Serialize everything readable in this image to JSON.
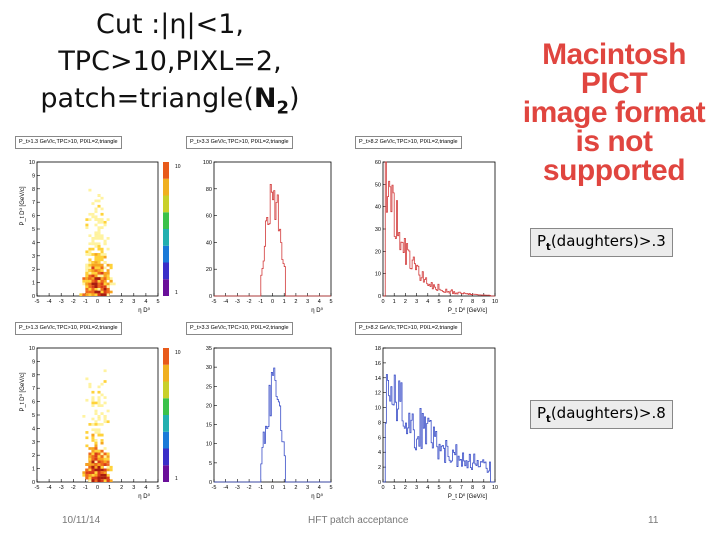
{
  "title": {
    "line1": "Cut :|η|<1,",
    "line2": "TPC>10,PIXL=2,",
    "line3_prefix": "patch=triangle(",
    "line3_bold": "N",
    "line3_sub": "2",
    "line3_suffix": ")"
  },
  "placeholder": {
    "line1": "Macintosh PICT",
    "line2": "image format",
    "line3": "is not supported"
  },
  "rows": [
    {
      "cut_prefix": "P",
      "cut_sub": "t",
      "cut_suffix": "(daughters)>.3",
      "hdr_left": "P_t>1.3 GeV/c,TPC>10, PIXL=2,triangle",
      "hdr_mid": "P_t>3.3 GeV/c,TPC>10, PIXL=2,triangle",
      "hdr_right": "P_t>8.2 GeV/c,TPC>10, PIXL=2,triangle"
    },
    {
      "cut_prefix": "P",
      "cut_sub": "t",
      "cut_suffix": "(daughters)>.8",
      "hdr_left": "P_t>1.3 GeV/c,TPC>10, PIXL=2,triangle",
      "hdr_mid": "P_t>3.3 GeV/c,TPC>10, PIXL=2,triangle",
      "hdr_right": "P_t>8.2 GeV/c,TPC>10, PIXL=2,triangle"
    }
  ],
  "axis_labels": {
    "eta": "η D⁰",
    "pt": "P_t D⁰ [GeV/c]",
    "pt_y": "P_t D⁰ [GeV/c]"
  },
  "eta_ticks": [
    "-5",
    "-4",
    "-3",
    "-2",
    "-1",
    "0",
    "1",
    "2",
    "3",
    "4",
    "5"
  ],
  "pt_ticks": [
    "0",
    "1",
    "2",
    "3",
    "4",
    "5",
    "6",
    "7",
    "8",
    "9",
    "10"
  ],
  "scatter_yticks_row1": [
    "0",
    "1",
    "2",
    "3",
    "4",
    "5",
    "6",
    "7",
    "8",
    "9",
    "10"
  ],
  "scatter_yticks_row2": [
    "0",
    "1",
    "2",
    "3",
    "4",
    "5",
    "6",
    "7",
    "8",
    "9",
    "10"
  ],
  "colz_ticks": [
    "1",
    "10"
  ],
  "eta_hist_yticks_row1": [
    "0",
    "20",
    "40",
    "60",
    "80",
    "100"
  ],
  "eta_hist_yticks_row2": [
    "0",
    "5",
    "10",
    "15",
    "20",
    "25",
    "30",
    "35"
  ],
  "pt_hist_yticks_row1": [
    "0",
    "10",
    "20",
    "30",
    "40",
    "50",
    "60"
  ],
  "pt_hist_yticks_row2": [
    "0",
    "2",
    "4",
    "6",
    "8",
    "10",
    "12",
    "14",
    "16",
    "18"
  ],
  "colors": {
    "row1_hist": "#d23a3a",
    "row2_hist": "#3a4ec8",
    "pict_text": "#e0453f"
  },
  "footer": {
    "date": "10/11/14",
    "center": "HFT patch acceptance",
    "page": "11"
  }
}
